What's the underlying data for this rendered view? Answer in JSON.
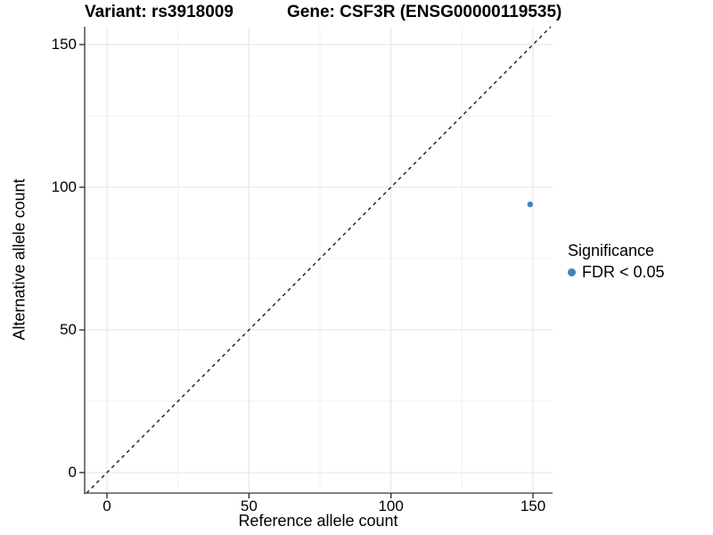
{
  "chart_data": {
    "type": "scatter",
    "title": "Variant: rs3918009   Gene: CSF3R (ENSG00000119535)",
    "title_parts": {
      "variant": "Variant: rs3918009",
      "gene": "Gene: CSF3R (ENSG00000119535)"
    },
    "xlabel": "Reference allele count",
    "ylabel": "Alternative allele count",
    "xlim": [
      0,
      150
    ],
    "ylim": [
      0,
      150
    ],
    "x_ticks": [
      0,
      50,
      100,
      150
    ],
    "y_ticks": [
      0,
      50,
      100,
      150
    ],
    "x_minor_ticks": [
      25,
      75,
      125
    ],
    "y_minor_ticks": [
      25,
      75,
      125
    ],
    "grid": true,
    "points": [
      {
        "x": 149,
        "y": 94,
        "series": "FDR < 0.05"
      }
    ],
    "reference_line": {
      "type": "identity",
      "equation": "y = x",
      "style": "dashed"
    },
    "legend": {
      "position": "right",
      "title": "Significance",
      "entries": [
        {
          "label": "FDR < 0.05",
          "color": "#4682B4"
        }
      ]
    },
    "colors": {
      "point": "#4682B4",
      "grid_major": "#e4e4e4",
      "grid_minor": "#f1f1f1",
      "axis_line": "#595959",
      "tick_mark": "#333333",
      "dashed_line": "#1a1a1a",
      "text": "#000000",
      "background": "#ffffff"
    }
  }
}
